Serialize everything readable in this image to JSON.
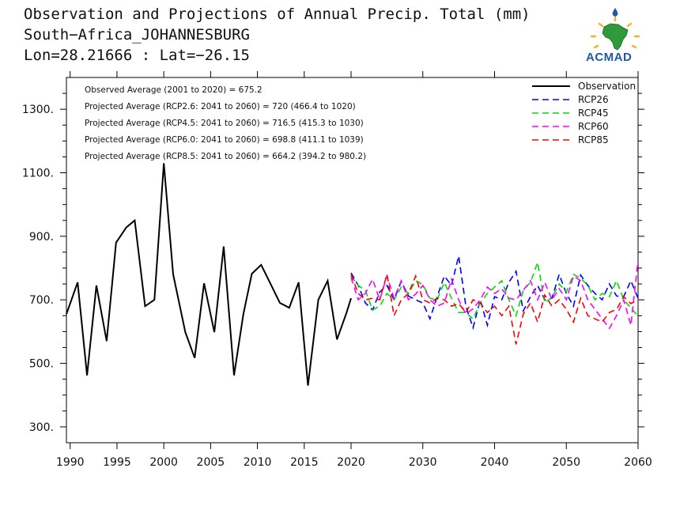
{
  "header": {
    "title": "Observation and Projections of Annual Precip. Total (mm)",
    "location": "South−Africa_JOHANNESBURG",
    "coords": "Lon=28.21666 : Lat=−26.15"
  },
  "logo": {
    "text": "ACMAD"
  },
  "chart_data": {
    "type": "line",
    "ylim": [
      250,
      1400
    ],
    "yticks": [
      300,
      500,
      700,
      900,
      1100,
      1300
    ],
    "ytick_labels": [
      "300.",
      "500.",
      "700.",
      "900.",
      "1100.",
      "1300."
    ],
    "xaxis_left": {
      "range": [
        1989.6,
        2020
      ],
      "ticks": [
        1990,
        1995,
        2000,
        2005,
        2010,
        2015,
        2020
      ]
    },
    "xaxis_right": {
      "range": [
        2020,
        2060
      ],
      "ticks": [
        2030,
        2040,
        2050,
        2060
      ]
    },
    "annotations": [
      "Observed Average (2001 to 2020) = 675.2",
      "Projected Average (RCP2.6: 2041 to 2060) = 720 (466.4 to 1020)",
      "Projected Average (RCP4.5: 2041 to 2060) = 716.5 (415.3 to 1030)",
      "Projected Average (RCP6.0: 2041 to 2060) = 698.8 (411.1 to 1039)",
      "Projected Average (RCP8.5: 2041 to 2060) = 664.2 (394.2 to 980.2)"
    ],
    "legend_position": "top-right",
    "series": [
      {
        "name": "Observation",
        "color": "#000000",
        "dash": "solid",
        "x": [
          1989.6,
          1990.8,
          1991.8,
          1992.8,
          1993.9,
          1994.9,
          1996.0,
          1996.9,
          1998.0,
          1999.0,
          2000.0,
          2001.0,
          2002.3,
          2003.3,
          2004.3,
          2005.4,
          2006.4,
          2007.5,
          2008.5,
          2009.4,
          2010.4,
          2011.4,
          2012.4,
          2013.4,
          2014.4,
          2015.4,
          2016.5,
          2017.5,
          2018.5,
          2019.5,
          2020.0
        ],
        "values": [
          655,
          755,
          462,
          745,
          570,
          880,
          928,
          950,
          680,
          700,
          1130,
          780,
          598,
          517,
          752,
          598,
          868,
          462,
          655,
          782,
          810,
          750,
          690,
          675,
          755,
          430,
          700,
          760,
          575,
          658,
          705
        ]
      },
      {
        "name": "RCP26",
        "color": "#0000ff",
        "dash": "dashed",
        "x": [
          2020,
          2021,
          2022,
          2023,
          2024,
          2025,
          2026,
          2027,
          2028,
          2029,
          2030,
          2031,
          2032,
          2033,
          2034,
          2035,
          2036,
          2037,
          2038,
          2039,
          2040,
          2041,
          2042,
          2043,
          2044,
          2045,
          2046,
          2047,
          2048,
          2049,
          2050,
          2051,
          2052,
          2053,
          2054,
          2055,
          2056,
          2057,
          2058,
          2059,
          2060
        ],
        "values": [
          785,
          745,
          690,
          668,
          725,
          745,
          700,
          758,
          712,
          700,
          690,
          640,
          710,
          775,
          745,
          838,
          680,
          612,
          700,
          620,
          710,
          700,
          755,
          790,
          665,
          710,
          745,
          700,
          705,
          780,
          720,
          680,
          778,
          745,
          720,
          700,
          750,
          712,
          710,
          760,
          705
        ]
      },
      {
        "name": "RCP45",
        "color": "#00dd00",
        "dash": "dashed",
        "x": [
          2020,
          2021,
          2022,
          2023,
          2024,
          2025,
          2026,
          2027,
          2028,
          2029,
          2030,
          2031,
          2032,
          2033,
          2034,
          2035,
          2036,
          2037,
          2038,
          2039,
          2040,
          2041,
          2042,
          2043,
          2044,
          2045,
          2046,
          2047,
          2048,
          2049,
          2050,
          2051,
          2052,
          2053,
          2054,
          2055,
          2056,
          2057,
          2058,
          2059,
          2060
        ],
        "values": [
          775,
          745,
          730,
          668,
          680,
          720,
          700,
          740,
          720,
          760,
          748,
          705,
          700,
          755,
          705,
          660,
          660,
          640,
          690,
          720,
          740,
          760,
          700,
          650,
          730,
          755,
          818,
          690,
          708,
          750,
          725,
          780,
          768,
          745,
          700,
          720,
          710,
          760,
          700,
          675,
          648
        ]
      },
      {
        "name": "RCP60",
        "color": "#ff00ff",
        "dash": "dashed",
        "x": [
          2020,
          2021,
          2022,
          2023,
          2024,
          2025,
          2026,
          2027,
          2028,
          2029,
          2030,
          2031,
          2032,
          2033,
          2034,
          2035,
          2036,
          2037,
          2038,
          2039,
          2040,
          2041,
          2042,
          2043,
          2044,
          2045,
          2046,
          2047,
          2048,
          2049,
          2050,
          2051,
          2052,
          2053,
          2054,
          2055,
          2056,
          2057,
          2058,
          2059,
          2060
        ],
        "values": [
          770,
          700,
          720,
          765,
          700,
          775,
          705,
          760,
          700,
          718,
          745,
          700,
          680,
          690,
          765,
          700,
          655,
          672,
          700,
          740,
          720,
          735,
          705,
          700,
          730,
          760,
          700,
          755,
          700,
          735,
          700,
          775,
          760,
          700,
          670,
          640,
          610,
          650,
          700,
          620,
          825
        ]
      },
      {
        "name": "RCP85",
        "color": "#ff0000",
        "dash": "dashed",
        "x": [
          2020,
          2021,
          2022,
          2023,
          2024,
          2025,
          2026,
          2027,
          2028,
          2029,
          2030,
          2031,
          2032,
          2033,
          2034,
          2035,
          2036,
          2037,
          2038,
          2039,
          2040,
          2041,
          2042,
          2043,
          2044,
          2045,
          2046,
          2047,
          2048,
          2049,
          2050,
          2051,
          2052,
          2053,
          2054,
          2055,
          2056,
          2057,
          2058,
          2059,
          2060
        ],
        "values": [
          780,
          720,
          700,
          705,
          700,
          780,
          650,
          700,
          720,
          775,
          700,
          690,
          705,
          700,
          680,
          688,
          660,
          700,
          690,
          660,
          680,
          650,
          680,
          560,
          655,
          690,
          630,
          715,
          680,
          700,
          670,
          630,
          705,
          650,
          640,
          630,
          660,
          670,
          710,
          688,
          700
        ]
      }
    ]
  }
}
